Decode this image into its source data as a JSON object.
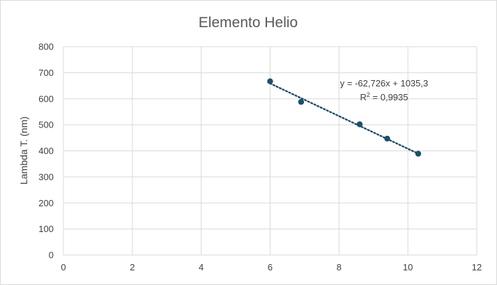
{
  "chart_data": {
    "type": "scatter",
    "title": "Elemento Helio",
    "xlabel": "",
    "ylabel": "Lambda T. (nm)",
    "xlim": [
      0,
      12
    ],
    "ylim": [
      0,
      800
    ],
    "xticks": [
      0,
      2,
      4,
      6,
      8,
      10,
      12
    ],
    "yticks": [
      0,
      100,
      200,
      300,
      400,
      500,
      600,
      700,
      800
    ],
    "grid": true,
    "legend": "none",
    "series": [
      {
        "points": [
          {
            "x": 6.0,
            "y": 667
          },
          {
            "x": 6.9,
            "y": 588
          },
          {
            "x": 8.6,
            "y": 502
          },
          {
            "x": 9.4,
            "y": 447
          },
          {
            "x": 10.3,
            "y": 389
          }
        ],
        "color": "#1f4e66"
      }
    ],
    "trendline": {
      "type": "linear",
      "slope": -62.726,
      "intercept": 1035.3,
      "x_range": [
        6.0,
        10.3
      ],
      "style": "dotted",
      "color": "#1f4e66",
      "equation_label": "y = -62,726x + 1035,3",
      "r2_prefix": "R",
      "r2_sup": "2",
      "r2_value": " = 0,9935"
    }
  }
}
